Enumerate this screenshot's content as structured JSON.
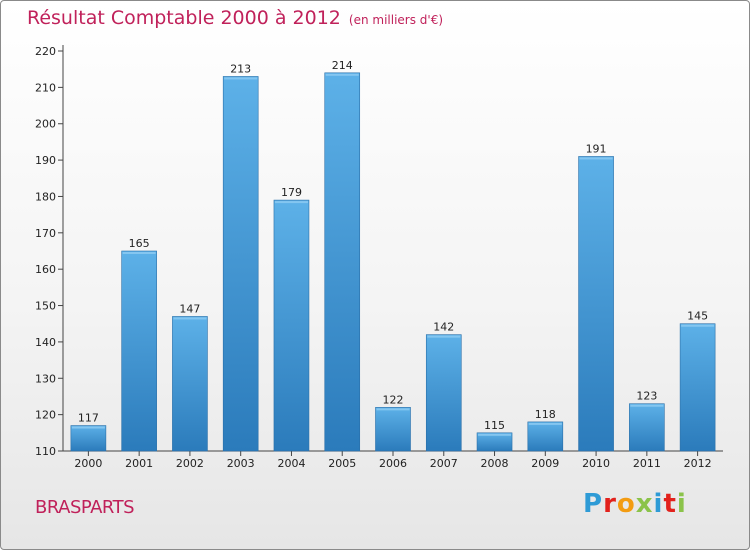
{
  "header": {
    "title": "Résultat Comptable 2000 à 2012",
    "subtitle": "(en milliers d'€)"
  },
  "place": "BRASPARTS",
  "logo": {
    "text": "Proxiti",
    "letters": [
      {
        "char": "P",
        "color": "#2e9bd6"
      },
      {
        "char": "r",
        "color": "#e2211c"
      },
      {
        "char": "o",
        "color": "#f39c12"
      },
      {
        "char": "x",
        "color": "#8bc34a"
      },
      {
        "char": "i",
        "color": "#2e9bd6"
      },
      {
        "char": "t",
        "color": "#e2211c"
      },
      {
        "char": "i",
        "color": "#8bc34a"
      }
    ]
  },
  "chart_data": {
    "type": "bar",
    "title": "Résultat Comptable 2000 à 2012",
    "subtitle": "(en milliers d'€)",
    "xlabel": "",
    "ylabel": "",
    "categories": [
      "2000",
      "2001",
      "2002",
      "2003",
      "2004",
      "2005",
      "2006",
      "2007",
      "2008",
      "2009",
      "2010",
      "2011",
      "2012"
    ],
    "values": [
      117,
      165,
      147,
      213,
      179,
      214,
      122,
      142,
      115,
      118,
      191,
      123,
      145
    ],
    "ylim": [
      110,
      220
    ],
    "yticks": [
      110,
      120,
      130,
      140,
      150,
      160,
      170,
      180,
      190,
      200,
      210,
      220
    ],
    "grid": false,
    "colors": {
      "bar_light": "#5aaee6",
      "bar_dark": "#2f7fbf",
      "axis": "#333333"
    }
  }
}
